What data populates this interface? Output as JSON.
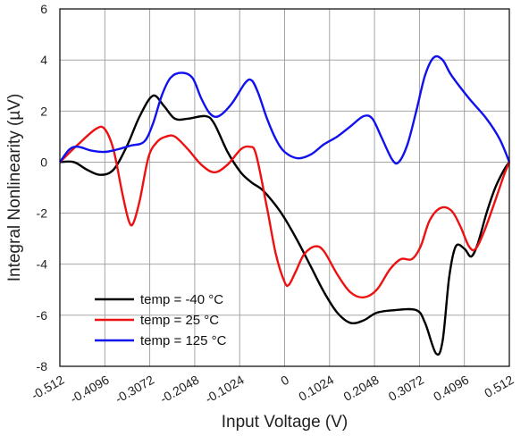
{
  "chart_data": {
    "type": "line",
    "title": "",
    "xlabel": "Input Voltage (V)",
    "ylabel": "Integral Nonlinearity (µV)",
    "xlim": [
      -0.512,
      0.512
    ],
    "ylim": [
      -8,
      6
    ],
    "x_ticks": [
      -0.512,
      -0.4096,
      -0.3072,
      -0.2048,
      -0.1024,
      0,
      0.1024,
      0.2048,
      0.3072,
      0.4096,
      0.512
    ],
    "x_tick_labels": [
      "-0.512",
      "-0.4096",
      "-0.3072",
      "-0.2048",
      "-0.1024",
      "0",
      "0.1024",
      "0.2048",
      "0.3072",
      "0.4096",
      "0.512"
    ],
    "y_ticks": [
      -8,
      -6,
      -4,
      -2,
      0,
      2,
      4,
      6
    ],
    "y_tick_labels": [
      "-8",
      "-6",
      "-4",
      "-2",
      "0",
      "2",
      "4",
      "6"
    ],
    "grid": true,
    "legend_position": "bottom-left",
    "series": [
      {
        "name": "temp = -40 °C",
        "color": "#000000",
        "points": [
          [
            -0.512,
            0.0
          ],
          [
            -0.48,
            0.0
          ],
          [
            -0.45,
            -0.3
          ],
          [
            -0.42,
            -0.5
          ],
          [
            -0.39,
            -0.3
          ],
          [
            -0.36,
            0.6
          ],
          [
            -0.33,
            1.8
          ],
          [
            -0.3,
            2.6
          ],
          [
            -0.275,
            2.2
          ],
          [
            -0.25,
            1.7
          ],
          [
            -0.22,
            1.7
          ],
          [
            -0.18,
            1.8
          ],
          [
            -0.16,
            1.5
          ],
          [
            -0.13,
            0.4
          ],
          [
            -0.1,
            -0.4
          ],
          [
            -0.075,
            -0.8
          ],
          [
            -0.05,
            -1.1
          ],
          [
            -0.02,
            -1.7
          ],
          [
            0.0,
            -2.2
          ],
          [
            0.03,
            -3.1
          ],
          [
            0.06,
            -4.1
          ],
          [
            0.09,
            -5.1
          ],
          [
            0.12,
            -5.9
          ],
          [
            0.15,
            -6.3
          ],
          [
            0.18,
            -6.2
          ],
          [
            0.21,
            -5.9
          ],
          [
            0.25,
            -5.8
          ],
          [
            0.3,
            -5.8
          ],
          [
            0.32,
            -6.3
          ],
          [
            0.345,
            -7.5
          ],
          [
            0.36,
            -7.0
          ],
          [
            0.375,
            -4.5
          ],
          [
            0.39,
            -3.3
          ],
          [
            0.41,
            -3.4
          ],
          [
            0.425,
            -3.7
          ],
          [
            0.44,
            -3.2
          ],
          [
            0.46,
            -2.0
          ],
          [
            0.48,
            -1.0
          ],
          [
            0.5,
            -0.3
          ],
          [
            0.512,
            0.0
          ]
        ]
      },
      {
        "name": "temp = 25 °C",
        "color": "#ee1111",
        "points": [
          [
            -0.512,
            0.0
          ],
          [
            -0.47,
            0.7
          ],
          [
            -0.43,
            1.3
          ],
          [
            -0.41,
            1.3
          ],
          [
            -0.39,
            0.5
          ],
          [
            -0.37,
            -1.2
          ],
          [
            -0.355,
            -2.3
          ],
          [
            -0.345,
            -2.4
          ],
          [
            -0.33,
            -1.5
          ],
          [
            -0.31,
            0.2
          ],
          [
            -0.29,
            0.8
          ],
          [
            -0.27,
            1.0
          ],
          [
            -0.25,
            1.0
          ],
          [
            -0.22,
            0.5
          ],
          [
            -0.19,
            -0.1
          ],
          [
            -0.16,
            -0.4
          ],
          [
            -0.13,
            -0.1
          ],
          [
            -0.1,
            0.5
          ],
          [
            -0.08,
            0.6
          ],
          [
            -0.065,
            0.3
          ],
          [
            -0.04,
            -1.8
          ],
          [
            -0.02,
            -3.6
          ],
          [
            0.0,
            -4.7
          ],
          [
            0.01,
            -4.8
          ],
          [
            0.025,
            -4.3
          ],
          [
            0.045,
            -3.6
          ],
          [
            0.07,
            -3.3
          ],
          [
            0.09,
            -3.5
          ],
          [
            0.12,
            -4.4
          ],
          [
            0.15,
            -5.1
          ],
          [
            0.18,
            -5.3
          ],
          [
            0.21,
            -5.0
          ],
          [
            0.24,
            -4.2
          ],
          [
            0.265,
            -3.8
          ],
          [
            0.29,
            -3.8
          ],
          [
            0.31,
            -3.3
          ],
          [
            0.33,
            -2.3
          ],
          [
            0.355,
            -1.8
          ],
          [
            0.38,
            -1.9
          ],
          [
            0.4,
            -2.5
          ],
          [
            0.42,
            -3.3
          ],
          [
            0.435,
            -3.4
          ],
          [
            0.455,
            -2.7
          ],
          [
            0.48,
            -1.5
          ],
          [
            0.5,
            -0.5
          ],
          [
            0.512,
            0.0
          ]
        ]
      },
      {
        "name": "temp = 125 °C",
        "color": "#1111ee",
        "points": [
          [
            -0.512,
            0.0
          ],
          [
            -0.49,
            0.5
          ],
          [
            -0.47,
            0.6
          ],
          [
            -0.44,
            0.45
          ],
          [
            -0.41,
            0.4
          ],
          [
            -0.38,
            0.5
          ],
          [
            -0.35,
            0.65
          ],
          [
            -0.32,
            0.8
          ],
          [
            -0.3,
            1.5
          ],
          [
            -0.28,
            2.6
          ],
          [
            -0.26,
            3.3
          ],
          [
            -0.235,
            3.5
          ],
          [
            -0.21,
            3.3
          ],
          [
            -0.19,
            2.5
          ],
          [
            -0.17,
            1.9
          ],
          [
            -0.15,
            1.8
          ],
          [
            -0.12,
            2.3
          ],
          [
            -0.09,
            3.1
          ],
          [
            -0.075,
            3.2
          ],
          [
            -0.06,
            2.7
          ],
          [
            -0.04,
            1.7
          ],
          [
            -0.02,
            0.9
          ],
          [
            0.0,
            0.4
          ],
          [
            0.03,
            0.15
          ],
          [
            0.06,
            0.3
          ],
          [
            0.09,
            0.7
          ],
          [
            0.12,
            1.0
          ],
          [
            0.15,
            1.4
          ],
          [
            0.18,
            1.8
          ],
          [
            0.2,
            1.7
          ],
          [
            0.22,
            1.0
          ],
          [
            0.245,
            0.1
          ],
          [
            0.26,
            0.0
          ],
          [
            0.28,
            0.7
          ],
          [
            0.3,
            2.0
          ],
          [
            0.32,
            3.4
          ],
          [
            0.34,
            4.1
          ],
          [
            0.36,
            4.0
          ],
          [
            0.38,
            3.4
          ],
          [
            0.42,
            2.5
          ],
          [
            0.46,
            1.7
          ],
          [
            0.49,
            0.9
          ],
          [
            0.512,
            0.0
          ]
        ]
      }
    ]
  }
}
